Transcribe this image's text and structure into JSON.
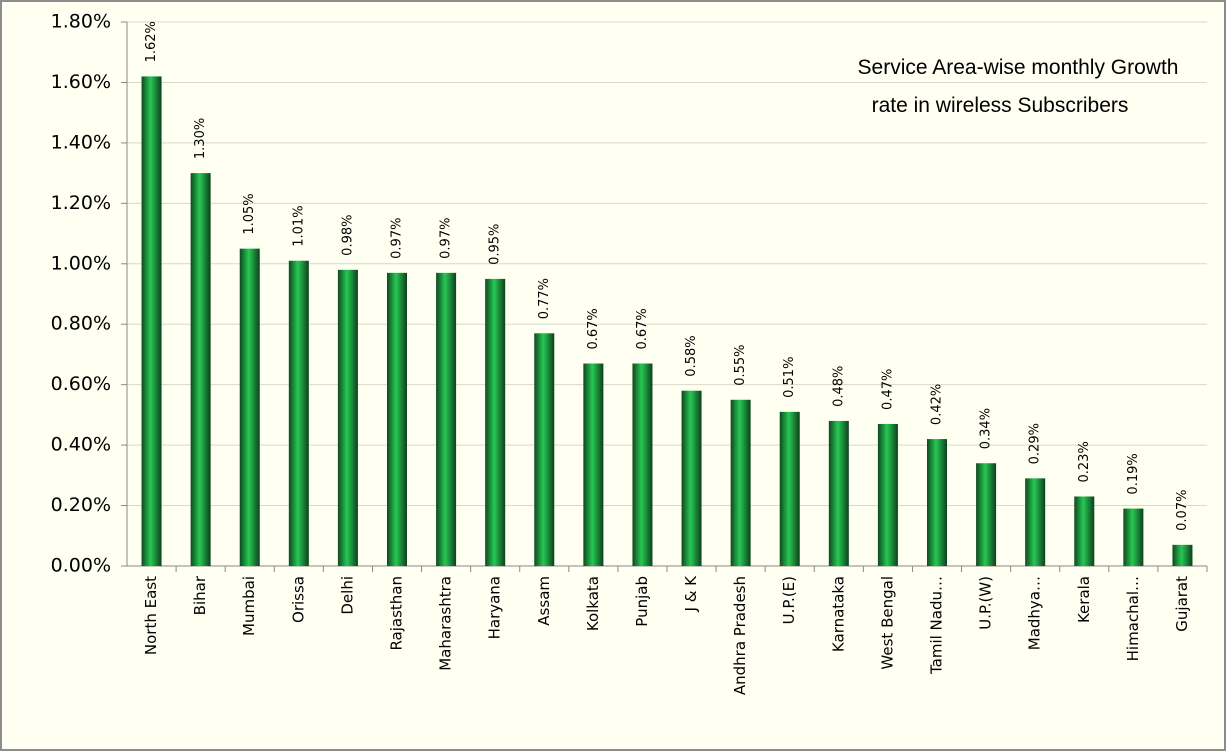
{
  "chart_data": {
    "type": "bar",
    "title": [
      "Service Area-wise monthly Growth",
      "rate in wireless Subscribers"
    ],
    "categories": [
      "North East",
      "Bihar",
      "Mumbai",
      "Orissa",
      "Delhi",
      "Rajasthan",
      "Maharashtra",
      "Haryana",
      "Assam",
      "Kolkata",
      "Punjab",
      "J & K",
      "Andhra Pradesh",
      "U.P.(E)",
      "Karnataka",
      "West Bengal",
      "Tamil Nadu…",
      "U.P.(W)",
      "Madhya…",
      "Kerala",
      "Himachal…",
      "Gujarat"
    ],
    "values": [
      1.62,
      1.3,
      1.05,
      1.01,
      0.98,
      0.97,
      0.97,
      0.95,
      0.77,
      0.67,
      0.67,
      0.58,
      0.55,
      0.51,
      0.48,
      0.47,
      0.42,
      0.34,
      0.29,
      0.23,
      0.19,
      0.07
    ],
    "value_labels": [
      "1.62%",
      "1.30%",
      "1.05%",
      "1.01%",
      "0.98%",
      "0.97%",
      "0.97%",
      "0.95%",
      "0.77%",
      "0.67%",
      "0.67%",
      "0.58%",
      "0.55%",
      "0.51%",
      "0.48%",
      "0.47%",
      "0.42%",
      "0.34%",
      "0.29%",
      "0.23%",
      "0.19%",
      "0.07%"
    ],
    "color": "#1fa043",
    "ylim": [
      0,
      1.8
    ],
    "yticks": [
      {
        "value": 0,
        "label": "0.00%"
      },
      {
        "value": 0.2,
        "label": "0.20%"
      },
      {
        "value": 0.4,
        "label": "0.40%"
      },
      {
        "value": 0.6,
        "label": "0.60%"
      },
      {
        "value": 0.8,
        "label": "0.80%"
      },
      {
        "value": 1.0,
        "label": "1.00%"
      },
      {
        "value": 1.2,
        "label": "1.20%"
      },
      {
        "value": 1.4,
        "label": "1.40%"
      },
      {
        "value": 1.6,
        "label": "1.60%"
      },
      {
        "value": 1.8,
        "label": "1.80%"
      }
    ],
    "grid": true
  }
}
